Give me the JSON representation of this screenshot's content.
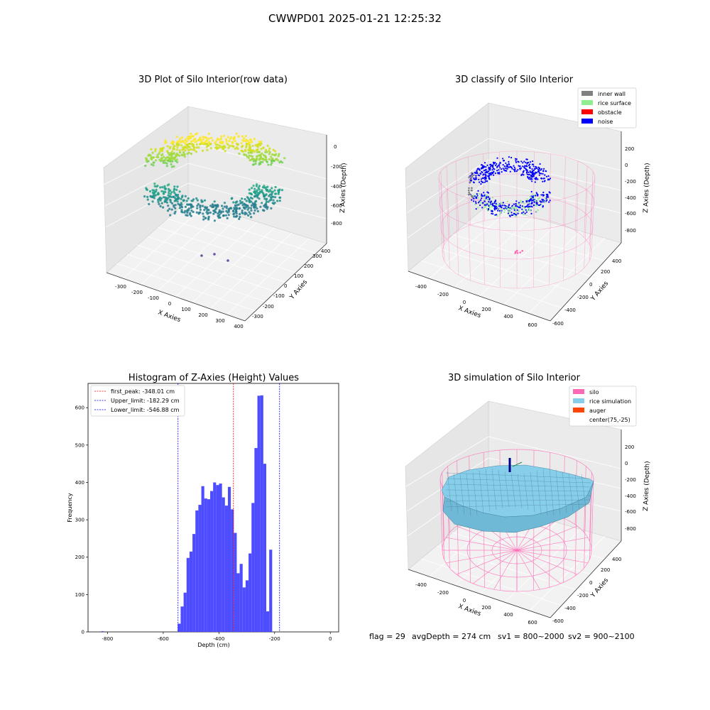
{
  "figure": {
    "title": "CWWPD01 2025-01-21 12:25:32",
    "footer": {
      "flag": "flag = 29",
      "avg_depth": "avgDepth = 274 cm",
      "sv1": "sv1 = 800~2000",
      "sv2": "sv2 = 900~2100"
    }
  },
  "colors": {
    "inner_wall": "#808080",
    "rice_surface": "#90ee90",
    "obstacle": "#ff0000",
    "noise": "#0000ff",
    "silo": "#ff69b4",
    "rice_simulation": "#87ceeb",
    "auger": "#ff4500",
    "hist_bar": "#4d4dff",
    "first_peak_line": "#ff0000",
    "limit_line": "#0000ff"
  },
  "chart_data": [
    {
      "id": "raw3d",
      "type": "scatter",
      "title": "3D Plot of Silo Interior(row data)",
      "xlabel": "X Axies",
      "ylabel": "Y Axies",
      "zlabel": "Z Axies (Depth)",
      "x_ticks": [
        "-300",
        "-200",
        "-100",
        "0",
        "100",
        "200",
        "300",
        "400"
      ],
      "y_ticks": [
        "-300",
        "-200",
        "-100",
        "0",
        "100",
        "200",
        "300",
        "400"
      ],
      "z_ticks": [
        "0",
        "-200",
        "-400",
        "-600",
        "-800"
      ],
      "xlim": [
        -350,
        400
      ],
      "ylim": [
        -350,
        400
      ],
      "zlim": [
        -900,
        50
      ],
      "colormap": "viridis (by depth)",
      "outlier_points": [
        {
          "x": 60,
          "y": -40,
          "z": -820
        },
        {
          "x": 120,
          "y": -60,
          "z": -820
        },
        {
          "x": 150,
          "y": 20,
          "z": -820
        }
      ]
    },
    {
      "id": "classify3d",
      "type": "scatter",
      "title": "3D classify of Silo Interior",
      "xlabel": "X Axies",
      "ylabel": "Y Axies",
      "zlabel": "Z Axies (Depth)",
      "x_ticks": [
        "-400",
        "-200",
        "0",
        "200",
        "400",
        "600"
      ],
      "y_ticks": [
        "-600",
        "-400",
        "-200",
        "0",
        "200",
        "400"
      ],
      "z_ticks": [
        "200",
        "0",
        "-200",
        "-400",
        "-600",
        "-800"
      ],
      "xlim": [
        -500,
        650
      ],
      "ylim": [
        -650,
        500
      ],
      "zlim": [
        -900,
        250
      ],
      "legend_position": "top-right",
      "legend": [
        {
          "label": "inner wall",
          "color_key": "inner_wall"
        },
        {
          "label": "rice surface",
          "color_key": "rice_surface"
        },
        {
          "label": "obstacle",
          "color_key": "obstacle"
        },
        {
          "label": "noise",
          "color_key": "noise"
        }
      ]
    },
    {
      "id": "histogram",
      "type": "bar",
      "title": "Histogram of Z-Axies (Height) Values",
      "xlabel": "Depth (cm)",
      "ylabel": "Frequency",
      "xlim": [
        -870,
        30
      ],
      "ylim": [
        0,
        665
      ],
      "x_ticks": [
        -800,
        -600,
        -400,
        -200,
        0
      ],
      "y_ticks": [
        0,
        100,
        200,
        300,
        400,
        500,
        600
      ],
      "bin_start": -548,
      "bin_width": 10.6,
      "values": [
        22,
        68,
        105,
        198,
        215,
        262,
        325,
        340,
        390,
        357,
        355,
        377,
        400,
        393,
        397,
        360,
        338,
        388,
        328,
        265,
        157,
        182,
        119,
        138,
        210,
        345,
        492,
        632,
        633,
        450,
        55,
        220
      ],
      "tiny_bins": [
        {
          "x": -822,
          "width": 8,
          "value": 2
        }
      ],
      "vlines": [
        {
          "label": "first_peak: -348.01 cm",
          "x": -348.01,
          "color_key": "first_peak_line"
        },
        {
          "label": "Upper_limit: -182.29 cm",
          "x": -182.29,
          "color_key": "limit_line"
        },
        {
          "label": "Lower_limit: -546.88 cm",
          "x": -546.88,
          "color_key": "limit_line"
        }
      ],
      "legend_position": "top-left"
    },
    {
      "id": "sim3d",
      "type": "area",
      "title": "3D simulation of Silo Interior",
      "xlabel": "X Axies",
      "ylabel": "Y Axies",
      "zlabel": "Z Axies (Depth)",
      "x_ticks": [
        "-400",
        "-200",
        "0",
        "200",
        "400",
        "600"
      ],
      "y_ticks": [
        "-600",
        "-400",
        "-200",
        "0",
        "200",
        "400"
      ],
      "z_ticks": [
        "200",
        "0",
        "-200",
        "-400",
        "-600",
        "-800"
      ],
      "xlim": [
        -500,
        650
      ],
      "ylim": [
        -650,
        500
      ],
      "zlim": [
        -900,
        250
      ],
      "legend_position": "top-right",
      "legend": [
        {
          "label": "silo",
          "color_key": "silo"
        },
        {
          "label": "rice simulation",
          "color_key": "rice_simulation"
        },
        {
          "label": "auger",
          "color_key": "auger"
        },
        {
          "label": "center(75,-25)",
          "color_key": ""
        }
      ]
    }
  ]
}
